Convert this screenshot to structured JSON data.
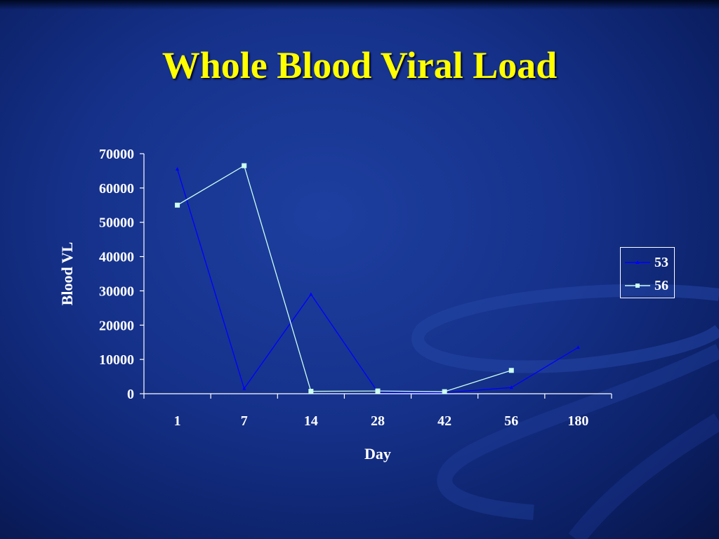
{
  "slide": {
    "title": "Whole Blood Viral Load"
  },
  "colors": {
    "background": "#15318a",
    "title": "#ffff00",
    "axis": "#ffffff",
    "series_53": "#0000ff",
    "series_56": "#ccffee"
  },
  "chart_data": {
    "type": "line",
    "title": "",
    "xlabel": "Day",
    "ylabel": "Blood VL",
    "categories": [
      "1",
      "7",
      "14",
      "28",
      "42",
      "56",
      "180"
    ],
    "ylim": [
      0,
      70000
    ],
    "yticks": [
      "0",
      "10000",
      "20000",
      "30000",
      "40000",
      "50000",
      "60000",
      "70000"
    ],
    "grid": false,
    "legend_position": "right",
    "series": [
      {
        "name": "53",
        "marker": "small-triangle",
        "color": "#0000ff",
        "values": [
          65500,
          1500,
          29000,
          500,
          300,
          1800,
          13500
        ]
      },
      {
        "name": "56",
        "marker": "square",
        "color": "#ccffee",
        "values": [
          55000,
          66500,
          700,
          800,
          600,
          6800,
          null
        ]
      }
    ]
  }
}
